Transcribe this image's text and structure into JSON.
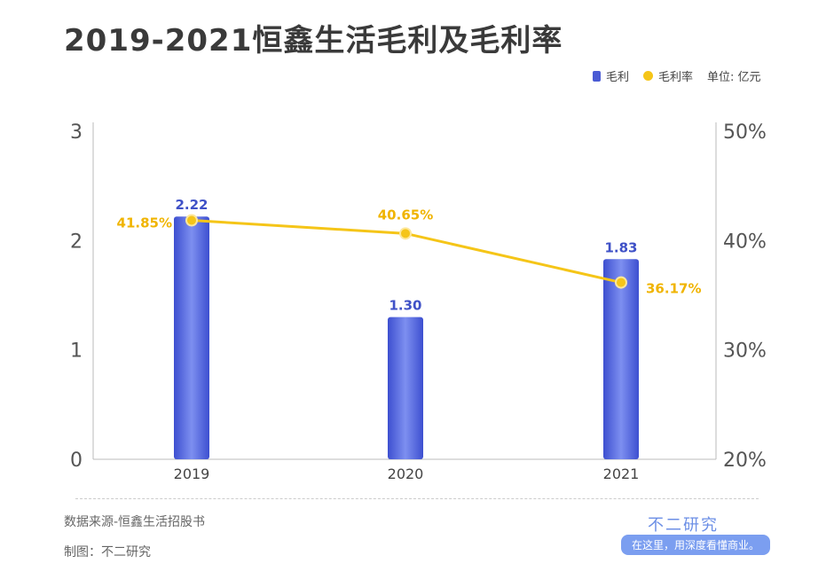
{
  "title": "2019-2021恒鑫生活毛利及毛利率",
  "legend": {
    "bar": "毛利",
    "line": "毛利率",
    "unit": "单位: 亿元"
  },
  "colors": {
    "bar": "#4a5bd4",
    "line": "#f5c518",
    "bar_label": "#3f51c7",
    "line_label": "#f0b400"
  },
  "chart_data": {
    "type": "bar+line",
    "categories": [
      "2019",
      "2020",
      "2021"
    ],
    "series": [
      {
        "name": "毛利",
        "type": "bar",
        "axis": "left",
        "values": [
          2.22,
          1.3,
          1.83
        ],
        "labels": [
          "2.22",
          "1.30",
          "1.83"
        ]
      },
      {
        "name": "毛利率",
        "type": "line",
        "axis": "right",
        "values": [
          41.85,
          40.65,
          36.17
        ],
        "labels": [
          "41.85%",
          "40.65%",
          "36.17%"
        ]
      }
    ],
    "y_left": {
      "range": [
        0,
        3
      ],
      "ticks": [
        "0",
        "1",
        "2",
        "3"
      ]
    },
    "y_right": {
      "range": [
        20,
        50
      ],
      "ticks": [
        "20%",
        "30%",
        "40%",
        "50%"
      ]
    },
    "grid": false,
    "legend_position": "top-right"
  },
  "footer": {
    "source": "数据来源-恒鑫生活招股书",
    "maker": "制图：不二研究",
    "brand": "不二研究",
    "slogan": "在这里，用深度看懂商业。"
  }
}
